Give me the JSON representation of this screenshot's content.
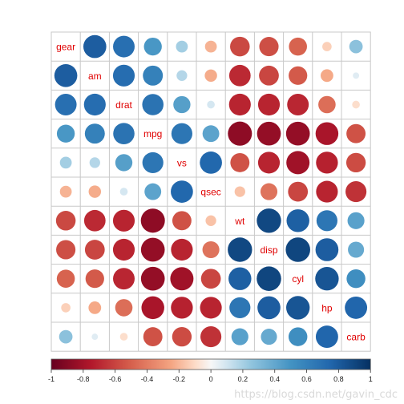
{
  "chart_data": {
    "type": "heatmap",
    "variables": [
      "gear",
      "am",
      "drat",
      "mpg",
      "vs",
      "qsec",
      "wt",
      "disp",
      "cyl",
      "hp",
      "carb"
    ],
    "correlation": [
      [
        1.0,
        0.79,
        0.7,
        0.48,
        0.21,
        -0.21,
        -0.58,
        -0.56,
        -0.49,
        -0.13,
        0.27
      ],
      [
        0.79,
        1.0,
        0.71,
        0.6,
        0.17,
        -0.23,
        -0.69,
        -0.59,
        -0.52,
        -0.24,
        0.06
      ],
      [
        0.7,
        0.71,
        1.0,
        0.68,
        0.44,
        0.09,
        -0.71,
        -0.71,
        -0.7,
        -0.45,
        -0.09
      ],
      [
        0.48,
        0.6,
        0.68,
        1.0,
        0.66,
        0.42,
        -0.87,
        -0.85,
        -0.85,
        -0.78,
        -0.55
      ],
      [
        0.21,
        0.17,
        0.44,
        0.66,
        1.0,
        0.74,
        -0.55,
        -0.71,
        -0.81,
        -0.72,
        -0.57
      ],
      [
        -0.21,
        -0.23,
        0.09,
        0.42,
        0.74,
        1.0,
        -0.17,
        -0.43,
        -0.59,
        -0.71,
        -0.66
      ],
      [
        -0.58,
        -0.69,
        -0.71,
        -0.87,
        -0.55,
        -0.17,
        1.0,
        0.89,
        0.78,
        0.66,
        0.43
      ],
      [
        -0.56,
        -0.59,
        -0.71,
        -0.85,
        -0.71,
        -0.43,
        0.89,
        1.0,
        0.9,
        0.79,
        0.39
      ],
      [
        -0.49,
        -0.52,
        -0.7,
        -0.85,
        -0.81,
        -0.59,
        0.78,
        0.9,
        1.0,
        0.83,
        0.53
      ],
      [
        -0.13,
        -0.24,
        -0.45,
        -0.78,
        -0.72,
        -0.71,
        0.66,
        0.79,
        0.83,
        1.0,
        0.75
      ],
      [
        0.27,
        0.06,
        -0.09,
        -0.55,
        -0.57,
        -0.66,
        0.43,
        0.39,
        0.53,
        0.75,
        1.0
      ]
    ],
    "colorbar": {
      "range": [
        -1,
        1
      ],
      "ticks": [
        "-1",
        "-0.8",
        "-0.6",
        "-0.4",
        "-0.2",
        "0",
        "0.2",
        "0.4",
        "0.6",
        "0.8",
        "1"
      ]
    },
    "colors": {
      "negative": "#67001F",
      "neutral": "#F7F7F7",
      "positive": "#053061",
      "label": "#e00000"
    },
    "grid": true
  },
  "watermark": "https://blog.csdn.net/gavin_cdc"
}
